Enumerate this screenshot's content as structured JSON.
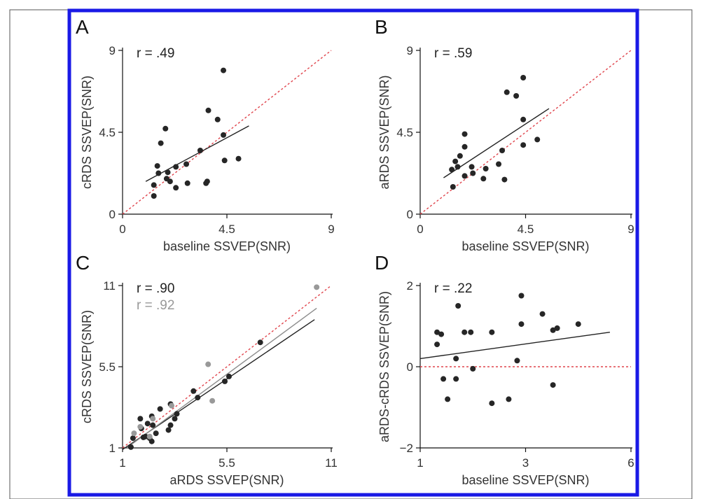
{
  "colors": {
    "frame": "#1a1ae6",
    "border": "#555555",
    "point_dark": "#262626",
    "point_gray": "#999999",
    "fit_line": "#222222",
    "fit_line_gray": "#8c8c8c",
    "reference_line": "#e0444c"
  },
  "chart_data": [
    {
      "panel": "A",
      "type": "scatter",
      "r_label": "r = .49",
      "xlabel": "baseline SSVEP(SNR)",
      "ylabel": "cRDS SSVEP(SNR)",
      "xlim": [
        0,
        9
      ],
      "ylim": [
        0,
        9
      ],
      "xticks": [
        "0",
        "4.5",
        "9"
      ],
      "yticks": [
        "0",
        "4.5",
        "9"
      ],
      "reference_line": "identity",
      "series": [
        {
          "color": "#262626",
          "points": [
            [
              4.35,
              7.9
            ],
            [
              3.7,
              5.7
            ],
            [
              4.1,
              5.2
            ],
            [
              4.35,
              4.35
            ],
            [
              1.85,
              4.7
            ],
            [
              1.65,
              3.9
            ],
            [
              3.35,
              3.5
            ],
            [
              4.4,
              2.95
            ],
            [
              5.0,
              3.05
            ],
            [
              1.5,
              2.65
            ],
            [
              2.3,
              2.6
            ],
            [
              2.75,
              2.75
            ],
            [
              1.95,
              2.3
            ],
            [
              1.55,
              2.25
            ],
            [
              1.9,
              1.95
            ],
            [
              2.05,
              1.8
            ],
            [
              1.35,
              1.6
            ],
            [
              2.3,
              1.45
            ],
            [
              2.8,
              1.7
            ],
            [
              3.6,
              1.7
            ],
            [
              3.65,
              1.8
            ],
            [
              1.35,
              1.0
            ]
          ]
        }
      ],
      "fit_line": [
        [
          1.0,
          1.8
        ],
        [
          5.45,
          4.85
        ]
      ]
    },
    {
      "panel": "B",
      "type": "scatter",
      "r_label": "r = .59",
      "xlabel": "baseline SSVEP(SNR)",
      "ylabel": "aRDS SSVEP(SNR)",
      "xlim": [
        0,
        9
      ],
      "ylim": [
        0,
        9
      ],
      "xticks": [
        "0",
        "4.5",
        "9"
      ],
      "yticks": [
        "0",
        "4.5",
        "9"
      ],
      "reference_line": "identity",
      "series": [
        {
          "color": "#262626",
          "points": [
            [
              4.4,
              7.5
            ],
            [
              3.7,
              6.7
            ],
            [
              4.1,
              6.5
            ],
            [
              4.4,
              5.2
            ],
            [
              1.9,
              4.4
            ],
            [
              1.9,
              3.7
            ],
            [
              4.4,
              3.8
            ],
            [
              5.0,
              4.1
            ],
            [
              3.5,
              3.5
            ],
            [
              1.7,
              3.2
            ],
            [
              1.5,
              2.9
            ],
            [
              1.6,
              2.6
            ],
            [
              1.35,
              2.45
            ],
            [
              2.2,
              2.6
            ],
            [
              3.35,
              2.75
            ],
            [
              2.8,
              2.5
            ],
            [
              2.25,
              2.25
            ],
            [
              1.9,
              2.1
            ],
            [
              2.7,
              1.95
            ],
            [
              3.6,
              1.9
            ],
            [
              1.4,
              1.5
            ]
          ]
        }
      ],
      "fit_line": [
        [
          1.0,
          2.0
        ],
        [
          5.5,
          5.8
        ]
      ]
    },
    {
      "panel": "C",
      "type": "scatter",
      "r_label": "r = .90",
      "r_label_2": "r = .92",
      "xlabel": "aRDS SSVEP(SNR)",
      "ylabel": "cRDS SSVEP(SNR)",
      "xlim": [
        1,
        11
      ],
      "ylim": [
        1,
        11
      ],
      "xticks": [
        "1",
        "5.5",
        "11"
      ],
      "yticks": [
        "1",
        "5.5",
        "11"
      ],
      "reference_line": "identity",
      "series": [
        {
          "color": "#262626",
          "points": [
            [
              7.6,
              7.5
            ],
            [
              6.1,
              5.4
            ],
            [
              5.9,
              5.1
            ],
            [
              4.4,
              4.5
            ],
            [
              4.6,
              4.1
            ],
            [
              3.3,
              3.7
            ],
            [
              2.8,
              3.4
            ],
            [
              3.6,
              3.1
            ],
            [
              3.5,
              2.8
            ],
            [
              2.4,
              2.95
            ],
            [
              1.85,
              2.8
            ],
            [
              2.2,
              2.5
            ],
            [
              2.45,
              2.4
            ],
            [
              1.9,
              2.2
            ],
            [
              3.3,
              2.4
            ],
            [
              3.2,
              2.1
            ],
            [
              2.6,
              1.9
            ],
            [
              2.1,
              1.7
            ],
            [
              2.3,
              1.6
            ],
            [
              2.0,
              1.65
            ],
            [
              2.4,
              1.4
            ],
            [
              1.5,
              1.6
            ],
            [
              1.4,
              1.05
            ]
          ]
        },
        {
          "color": "#999999",
          "points": [
            [
              10.3,
              10.9
            ],
            [
              5.1,
              6.15
            ],
            [
              5.3,
              3.9
            ],
            [
              3.35,
              3.6
            ],
            [
              2.45,
              2.8
            ],
            [
              1.85,
              2.3
            ],
            [
              1.55,
              1.9
            ],
            [
              2.3,
              1.7
            ]
          ]
        }
      ],
      "fit_line": [
        [
          1.0,
          0.9
        ],
        [
          10.2,
          8.9
        ]
      ],
      "fit_line_2": [
        [
          1.2,
          1.0
        ],
        [
          10.3,
          9.6
        ]
      ]
    },
    {
      "panel": "D",
      "type": "scatter",
      "r_label": "r = .22",
      "xlabel": "baseline SSVEP(SNR)",
      "ylabel": "aRDS-cRDS SSVEP(SNR)",
      "xlim": [
        1,
        6
      ],
      "ylim": [
        -2,
        2
      ],
      "xticks": [
        "1",
        "3",
        "6"
      ],
      "yticks": [
        "−2",
        "0",
        "2"
      ],
      "reference_line": "y=0",
      "series": [
        {
          "color": "#262626",
          "points": [
            [
              1.4,
              0.85
            ],
            [
              1.5,
              0.8
            ],
            [
              1.4,
              0.55
            ],
            [
              1.55,
              -0.3
            ],
            [
              1.65,
              -0.8
            ],
            [
              1.85,
              0.2
            ],
            [
              1.85,
              -0.3
            ],
            [
              1.9,
              1.5
            ],
            [
              2.05,
              0.85
            ],
            [
              2.2,
              0.85
            ],
            [
              2.25,
              -0.05
            ],
            [
              2.7,
              0.85
            ],
            [
              2.7,
              -0.9
            ],
            [
              3.1,
              -0.8
            ],
            [
              3.3,
              0.15
            ],
            [
              3.4,
              1.05
            ],
            [
              3.4,
              1.75
            ],
            [
              3.9,
              1.3
            ],
            [
              4.15,
              0.9
            ],
            [
              4.25,
              0.95
            ],
            [
              4.15,
              -0.45
            ],
            [
              4.75,
              1.05
            ]
          ]
        }
      ],
      "fit_line": [
        [
          1.0,
          0.2
        ],
        [
          5.5,
          0.85
        ]
      ]
    }
  ],
  "panel_labels": [
    "A",
    "B",
    "C",
    "D"
  ]
}
